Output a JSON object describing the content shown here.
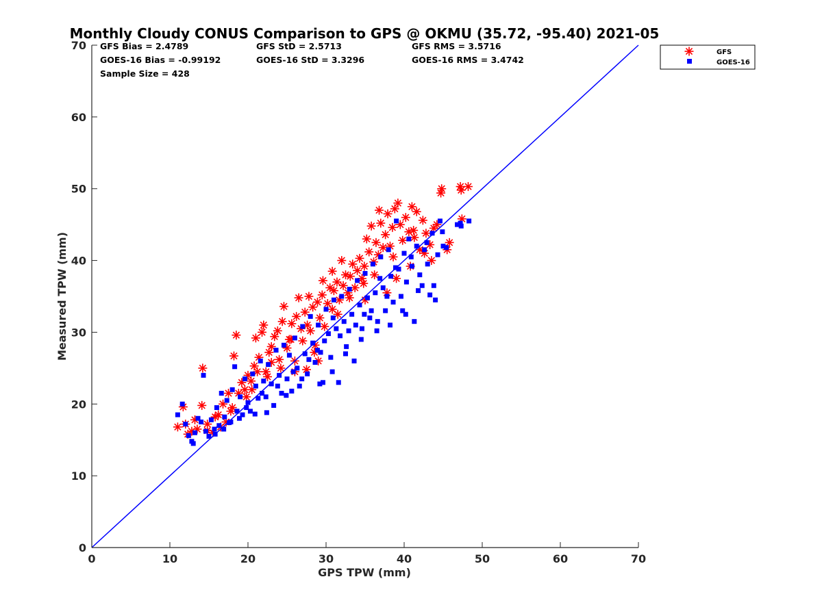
{
  "chart_data": {
    "type": "scatter",
    "title": "Monthly Cloudy CONUS Comparison to GPS @ OKMU (35.72, -95.40) 2021-05",
    "xlabel": "GPS TPW (mm)",
    "ylabel": "Measured TPW (mm)",
    "xlim": [
      0,
      70
    ],
    "ylim": [
      0,
      70
    ],
    "xticks": [
      0,
      10,
      20,
      30,
      40,
      50,
      60,
      70
    ],
    "yticks": [
      0,
      10,
      20,
      30,
      40,
      50,
      60,
      70
    ],
    "grid": false,
    "legend_position": "top-right, outside axes",
    "stats": [
      [
        "GFS Bias = 2.4789",
        "GFS StD = 2.5713",
        "GFS RMS = 3.5716"
      ],
      [
        "GOES-16 Bias = -0.99192",
        "GOES-16 StD = 3.3296",
        "GOES-16 RMS = 3.4742"
      ],
      [
        "Sample Size = 428"
      ]
    ],
    "reference_line": {
      "x": [
        0,
        70
      ],
      "y": [
        0,
        70
      ],
      "color": "#0000ff"
    },
    "series": [
      {
        "name": "GFS",
        "marker": "asterisk",
        "color": "#ff0000",
        "points": [
          [
            11.0,
            16.8
          ],
          [
            11.7,
            19.6
          ],
          [
            12.3,
            15.8
          ],
          [
            12.8,
            16.2
          ],
          [
            14.2,
            25.0
          ],
          [
            14.1,
            19.8
          ],
          [
            13.5,
            16.5
          ],
          [
            14.8,
            17.2
          ],
          [
            15.5,
            16.0
          ],
          [
            16.2,
            18.5
          ],
          [
            16.8,
            20.0
          ],
          [
            17.2,
            17.5
          ],
          [
            17.8,
            19.0
          ],
          [
            18.2,
            26.7
          ],
          [
            18.5,
            29.6
          ],
          [
            18.8,
            21.5
          ],
          [
            19.2,
            23.0
          ],
          [
            19.6,
            22.0
          ],
          [
            20.0,
            24.0
          ],
          [
            20.4,
            23.2
          ],
          [
            20.8,
            25.3
          ],
          [
            21.0,
            29.2
          ],
          [
            21.4,
            26.5
          ],
          [
            21.8,
            30.0
          ],
          [
            22.0,
            31.0
          ],
          [
            22.3,
            24.5
          ],
          [
            22.7,
            27.2
          ],
          [
            23.0,
            25.8
          ],
          [
            23.4,
            29.4
          ],
          [
            23.8,
            30.2
          ],
          [
            24.0,
            26.2
          ],
          [
            24.4,
            31.5
          ],
          [
            24.6,
            33.6
          ],
          [
            25.0,
            27.8
          ],
          [
            25.3,
            29.0
          ],
          [
            25.6,
            31.2
          ],
          [
            26.0,
            26.0
          ],
          [
            26.2,
            32.2
          ],
          [
            26.5,
            34.8
          ],
          [
            26.8,
            30.5
          ],
          [
            27.0,
            28.8
          ],
          [
            27.3,
            32.8
          ],
          [
            27.6,
            31.0
          ],
          [
            28.0,
            30.2
          ],
          [
            28.3,
            33.5
          ],
          [
            28.6,
            28.2
          ],
          [
            28.9,
            34.2
          ],
          [
            29.2,
            32.0
          ],
          [
            29.5,
            35.2
          ],
          [
            29.8,
            30.8
          ],
          [
            30.2,
            34.0
          ],
          [
            30.5,
            36.2
          ],
          [
            30.8,
            33.2
          ],
          [
            31.0,
            35.8
          ],
          [
            31.4,
            37.0
          ],
          [
            31.7,
            34.5
          ],
          [
            32.0,
            40.0
          ],
          [
            32.2,
            36.5
          ],
          [
            32.5,
            38.0
          ],
          [
            32.8,
            35.5
          ],
          [
            33.1,
            37.8
          ],
          [
            33.4,
            39.5
          ],
          [
            33.7,
            36.2
          ],
          [
            34.0,
            38.6
          ],
          [
            34.3,
            40.3
          ],
          [
            34.6,
            37.5
          ],
          [
            34.9,
            39.2
          ],
          [
            35.2,
            43.0
          ],
          [
            35.5,
            41.2
          ],
          [
            35.8,
            44.8
          ],
          [
            36.1,
            39.8
          ],
          [
            36.4,
            42.5
          ],
          [
            36.7,
            40.8
          ],
          [
            37.0,
            45.2
          ],
          [
            37.3,
            41.8
          ],
          [
            37.6,
            43.6
          ],
          [
            37.9,
            46.5
          ],
          [
            38.2,
            42.0
          ],
          [
            38.5,
            44.6
          ],
          [
            38.8,
            47.2
          ],
          [
            39.2,
            48.0
          ],
          [
            39.5,
            45.0
          ],
          [
            39.8,
            42.8
          ],
          [
            40.2,
            46.0
          ],
          [
            40.6,
            44.0
          ],
          [
            41.0,
            47.5
          ],
          [
            41.3,
            43.2
          ],
          [
            41.6,
            46.8
          ],
          [
            42.0,
            41.5
          ],
          [
            42.4,
            45.6
          ],
          [
            42.8,
            43.8
          ],
          [
            43.3,
            42.2
          ],
          [
            43.8,
            44.5
          ],
          [
            44.2,
            45.0
          ],
          [
            44.8,
            50.0
          ],
          [
            44.7,
            49.4
          ],
          [
            45.5,
            41.5
          ],
          [
            45.8,
            42.5
          ],
          [
            47.2,
            50.3
          ],
          [
            47.3,
            49.8
          ],
          [
            47.4,
            45.8
          ],
          [
            48.2,
            50.3
          ],
          [
            23.0,
            28.0
          ],
          [
            24.2,
            25.0
          ],
          [
            26.0,
            24.5
          ],
          [
            27.5,
            24.8
          ],
          [
            28.5,
            27.2
          ],
          [
            29.0,
            26.0
          ],
          [
            25.5,
            29.0
          ],
          [
            19.8,
            21.0
          ],
          [
            17.5,
            21.5
          ],
          [
            15.8,
            18.2
          ],
          [
            20.5,
            22.0
          ],
          [
            21.2,
            24.5
          ],
          [
            22.5,
            23.8
          ],
          [
            30.8,
            38.5
          ],
          [
            33.0,
            34.8
          ],
          [
            34.8,
            36.8
          ],
          [
            36.2,
            38.0
          ],
          [
            38.6,
            40.5
          ],
          [
            40.8,
            39.2
          ],
          [
            42.6,
            41.0
          ],
          [
            39.0,
            37.5
          ],
          [
            37.8,
            35.5
          ],
          [
            41.2,
            44.2
          ],
          [
            43.5,
            40.0
          ],
          [
            18.0,
            19.5
          ],
          [
            16.5,
            16.8
          ],
          [
            13.2,
            17.8
          ],
          [
            12.0,
            17.2
          ],
          [
            14.8,
            16.3
          ],
          [
            31.5,
            32.5
          ],
          [
            35.0,
            34.5
          ],
          [
            27.8,
            35.0
          ],
          [
            29.6,
            37.2
          ],
          [
            36.8,
            47.0
          ]
        ]
      },
      {
        "name": "GOES-16",
        "marker": "square",
        "color": "#0000ff",
        "points": [
          [
            11.0,
            18.5
          ],
          [
            11.6,
            20.0
          ],
          [
            12.0,
            17.2
          ],
          [
            12.4,
            15.6
          ],
          [
            12.8,
            14.8
          ],
          [
            13.2,
            16.0
          ],
          [
            13.6,
            18.0
          ],
          [
            14.0,
            17.5
          ],
          [
            14.3,
            24.0
          ],
          [
            14.6,
            16.2
          ],
          [
            15.0,
            15.5
          ],
          [
            15.3,
            17.8
          ],
          [
            15.7,
            16.5
          ],
          [
            16.0,
            19.5
          ],
          [
            16.3,
            17.0
          ],
          [
            16.6,
            21.5
          ],
          [
            17.0,
            18.2
          ],
          [
            17.3,
            20.5
          ],
          [
            17.6,
            17.4
          ],
          [
            18.0,
            22.0
          ],
          [
            18.3,
            25.2
          ],
          [
            18.6,
            19.0
          ],
          [
            19.0,
            21.0
          ],
          [
            19.3,
            18.5
          ],
          [
            19.6,
            23.5
          ],
          [
            20.0,
            20.2
          ],
          [
            20.3,
            19.0
          ],
          [
            20.6,
            24.2
          ],
          [
            21.0,
            22.5
          ],
          [
            21.3,
            20.8
          ],
          [
            21.6,
            26.0
          ],
          [
            22.0,
            23.2
          ],
          [
            22.3,
            21.0
          ],
          [
            22.6,
            25.5
          ],
          [
            23.0,
            22.8
          ],
          [
            23.3,
            19.8
          ],
          [
            23.6,
            27.5
          ],
          [
            24.0,
            24.0
          ],
          [
            24.3,
            21.5
          ],
          [
            24.6,
            28.2
          ],
          [
            25.0,
            23.5
          ],
          [
            25.3,
            26.8
          ],
          [
            25.6,
            21.8
          ],
          [
            26.0,
            29.2
          ],
          [
            26.3,
            25.0
          ],
          [
            26.6,
            22.5
          ],
          [
            27.0,
            30.8
          ],
          [
            27.3,
            27.0
          ],
          [
            27.6,
            24.2
          ],
          [
            28.0,
            32.2
          ],
          [
            28.3,
            28.5
          ],
          [
            28.6,
            25.8
          ],
          [
            29.0,
            31.0
          ],
          [
            29.3,
            27.2
          ],
          [
            29.6,
            23.0
          ],
          [
            30.0,
            33.2
          ],
          [
            30.3,
            29.8
          ],
          [
            30.6,
            26.5
          ],
          [
            31.0,
            34.5
          ],
          [
            31.3,
            30.5
          ],
          [
            31.6,
            23.0
          ],
          [
            32.0,
            35.0
          ],
          [
            32.3,
            31.5
          ],
          [
            32.6,
            28.0
          ],
          [
            33.0,
            36.0
          ],
          [
            33.3,
            32.5
          ],
          [
            33.6,
            26.0
          ],
          [
            34.0,
            37.2
          ],
          [
            34.3,
            33.8
          ],
          [
            34.6,
            30.5
          ],
          [
            35.0,
            38.2
          ],
          [
            35.3,
            34.8
          ],
          [
            35.6,
            32.0
          ],
          [
            36.0,
            39.5
          ],
          [
            36.3,
            35.5
          ],
          [
            36.6,
            31.5
          ],
          [
            37.0,
            40.5
          ],
          [
            37.3,
            36.2
          ],
          [
            37.6,
            33.0
          ],
          [
            38.0,
            41.5
          ],
          [
            38.3,
            37.8
          ],
          [
            38.6,
            34.2
          ],
          [
            39.0,
            45.5
          ],
          [
            39.3,
            38.8
          ],
          [
            39.6,
            35.0
          ],
          [
            40.0,
            41.0
          ],
          [
            40.3,
            37.0
          ],
          [
            40.6,
            43.0
          ],
          [
            41.0,
            39.2
          ],
          [
            41.3,
            31.5
          ],
          [
            41.6,
            42.0
          ],
          [
            42.0,
            38.0
          ],
          [
            42.3,
            36.5
          ],
          [
            42.6,
            41.5
          ],
          [
            43.0,
            39.5
          ],
          [
            43.3,
            35.2
          ],
          [
            43.6,
            43.8
          ],
          [
            44.0,
            34.5
          ],
          [
            44.3,
            40.8
          ],
          [
            44.6,
            45.5
          ],
          [
            45.0,
            42.0
          ],
          [
            45.4,
            41.8
          ],
          [
            46.8,
            45.0
          ],
          [
            47.2,
            45.2
          ],
          [
            47.3,
            44.8
          ],
          [
            48.3,
            45.5
          ],
          [
            13.0,
            14.5
          ],
          [
            15.8,
            15.8
          ],
          [
            17.8,
            17.5
          ],
          [
            19.8,
            19.5
          ],
          [
            21.8,
            21.5
          ],
          [
            23.8,
            22.5
          ],
          [
            25.8,
            24.5
          ],
          [
            27.8,
            26.2
          ],
          [
            29.8,
            28.8
          ],
          [
            31.8,
            29.5
          ],
          [
            33.8,
            31.0
          ],
          [
            35.8,
            33.0
          ],
          [
            37.8,
            35.0
          ],
          [
            39.8,
            33.0
          ],
          [
            41.8,
            35.8
          ],
          [
            43.8,
            36.5
          ],
          [
            22.4,
            18.8
          ],
          [
            24.9,
            21.2
          ],
          [
            26.9,
            23.5
          ],
          [
            28.9,
            27.5
          ],
          [
            30.9,
            32.0
          ],
          [
            32.9,
            30.2
          ],
          [
            34.9,
            32.5
          ],
          [
            36.9,
            37.5
          ],
          [
            38.9,
            39.0
          ],
          [
            40.9,
            40.5
          ],
          [
            42.9,
            42.5
          ],
          [
            44.9,
            44.0
          ],
          [
            20.9,
            18.6
          ],
          [
            18.9,
            18.0
          ],
          [
            16.9,
            16.5
          ],
          [
            29.2,
            22.8
          ],
          [
            30.8,
            24.5
          ],
          [
            32.5,
            27.0
          ],
          [
            34.5,
            29.0
          ],
          [
            36.5,
            30.2
          ],
          [
            38.2,
            31.0
          ],
          [
            40.2,
            32.5
          ]
        ]
      }
    ]
  }
}
